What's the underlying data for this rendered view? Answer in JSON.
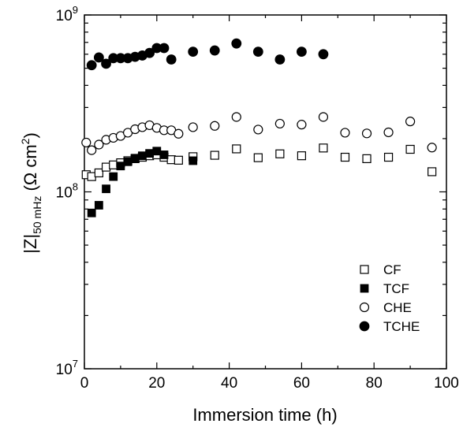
{
  "chart_data": {
    "type": "scatter",
    "x_scale": "linear",
    "y_scale": "log",
    "xlim": [
      0,
      100
    ],
    "ylim": [
      10000000,
      1000000000
    ],
    "grid": false,
    "legend_position": "bottom-right",
    "xlabel": "Immersion time (h)",
    "ylabel": {
      "main": "|Z|",
      "subscript": "50 mHz",
      "unit_open": " (Ω cm",
      "unit_sup": "2",
      "unit_close": ")"
    },
    "x_ticks": [
      "0",
      "20",
      "40",
      "60",
      "80",
      "100"
    ],
    "y_ticks": [
      {
        "base": "10",
        "exp": "7"
      },
      {
        "base": "10",
        "exp": "8"
      },
      {
        "base": "10",
        "exp": "9"
      }
    ],
    "series": [
      {
        "name": "CF",
        "marker": "open-square",
        "x": [
          0.5,
          2,
          4,
          6,
          8,
          10,
          12,
          14,
          16,
          18,
          20,
          22,
          24,
          26,
          30,
          36,
          42,
          48,
          54,
          60,
          66,
          72,
          78,
          84,
          90,
          96
        ],
        "y": [
          125000000,
          122000000,
          128000000,
          138000000,
          142000000,
          146000000,
          150000000,
          154000000,
          157000000,
          160000000,
          162000000,
          157000000,
          152000000,
          151000000,
          158000000,
          161000000,
          175000000,
          156000000,
          164000000,
          160000000,
          177000000,
          157000000,
          154000000,
          157000000,
          174000000,
          130000000
        ]
      },
      {
        "name": "TCF",
        "marker": "filled-square",
        "x": [
          2,
          4,
          6,
          8,
          10,
          12,
          14,
          16,
          18,
          20,
          22,
          30
        ],
        "y": [
          76000000,
          84000000,
          104000000,
          122000000,
          140000000,
          148000000,
          155000000,
          160000000,
          165000000,
          170000000,
          162000000,
          150000000
        ]
      },
      {
        "name": "CHE",
        "marker": "open-circle",
        "x": [
          0.5,
          2,
          4,
          6,
          8,
          10,
          12,
          14,
          16,
          18,
          20,
          22,
          24,
          26,
          30,
          36,
          42,
          48,
          54,
          60,
          66,
          72,
          78,
          84,
          90,
          96
        ],
        "y": [
          190000000,
          172000000,
          185000000,
          197000000,
          202000000,
          207000000,
          216000000,
          226000000,
          232000000,
          238000000,
          230000000,
          223000000,
          223000000,
          213000000,
          232000000,
          236000000,
          265000000,
          225000000,
          243000000,
          240000000,
          265000000,
          216000000,
          214000000,
          217000000,
          250000000,
          178000000
        ]
      },
      {
        "name": "TCHE",
        "marker": "filled-circle",
        "x": [
          2,
          4,
          6,
          8,
          10,
          12,
          14,
          16,
          18,
          20,
          22,
          24,
          30,
          36,
          42,
          48,
          54,
          60,
          66
        ],
        "y": [
          520000000,
          575000000,
          530000000,
          570000000,
          570000000,
          570000000,
          580000000,
          590000000,
          610000000,
          650000000,
          650000000,
          560000000,
          620000000,
          630000000,
          690000000,
          620000000,
          560000000,
          620000000,
          600000000
        ]
      }
    ]
  }
}
